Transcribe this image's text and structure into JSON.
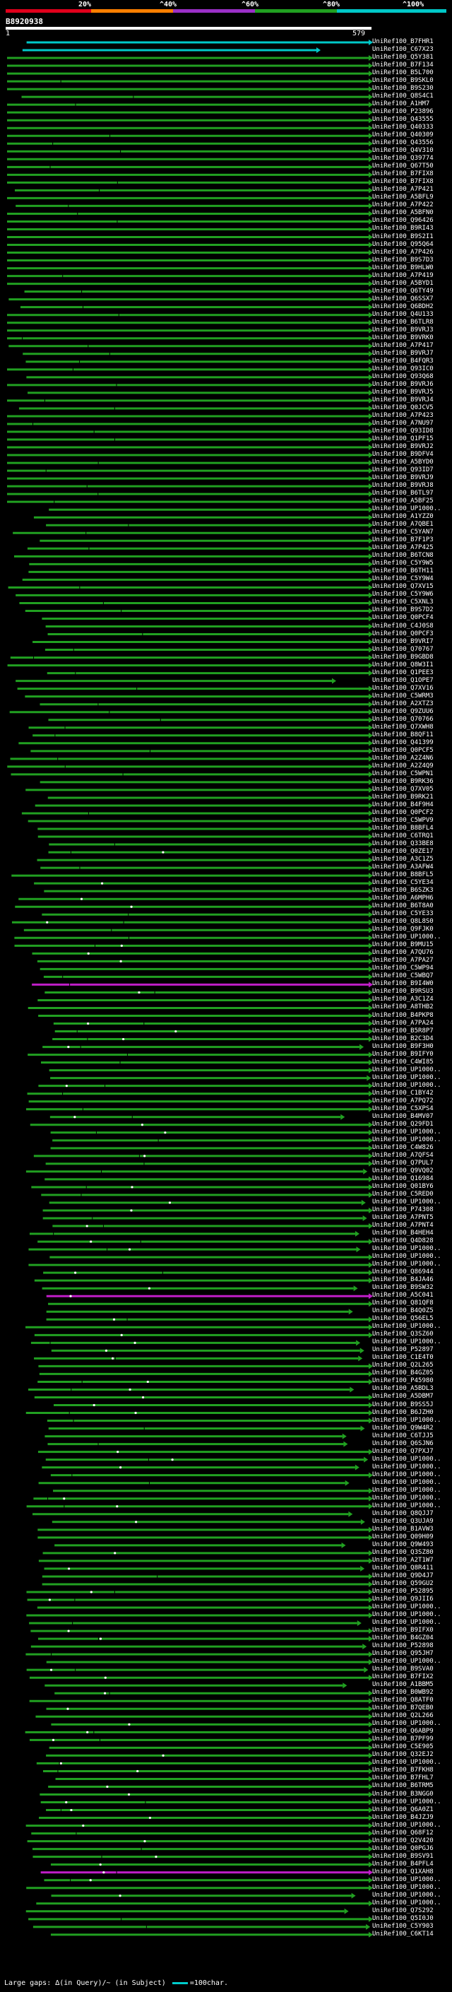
{
  "scale": {
    "ticks": [
      "20%",
      "^40%",
      "^60%",
      "^80%",
      "^100%"
    ],
    "colors": [
      "#e0001b",
      "#ff7f00",
      "#9b30c8",
      "#21a021",
      "#00c8c8"
    ]
  },
  "query": {
    "id": "B8920938",
    "start": "1",
    "end": "579"
  },
  "hits": [
    "UniRef100_B7FHR1",
    "UniRef100_C67X23",
    "UniRef100_Q5Y381",
    "UniRef100_B7F134",
    "UniRef100_B5L700",
    "UniRef100_B9SKL0",
    "UniRef100_B9S230",
    "UniRef100_Q8S4C1",
    "UniRef100_A1HM7",
    "UniRef100_P23896",
    "UniRef100_Q43555",
    "UniRef100_Q40333",
    "UniRef100_Q40309",
    "UniRef100_Q43556",
    "UniRef100_Q4V310",
    "UniRef100_Q39774",
    "UniRef100_Q67T50",
    "UniRef100_B7FIX8",
    "UniRef100_B7FIX8",
    "UniRef100_A7P421",
    "UniRef100_A5BFL9",
    "UniRef100_A7P422",
    "UniRef100_A5BFN0",
    "UniRef100_Q96426",
    "UniRef100_B9RI43",
    "UniRef100_B9S2I1",
    "UniRef100_Q95Q64",
    "UniRef100_A7P426",
    "UniRef100_B9S7D3",
    "UniRef100_B9HLW0",
    "UniRef100_A7P419",
    "UniRef100_A5BYD1",
    "UniRef100_Q6TY49",
    "UniRef100_Q6SSX7",
    "UniRef100_Q6BDH2",
    "UniRef100_Q4U133",
    "UniRef100_B6TLR8",
    "UniRef100_B9VRJ3",
    "UniRef100_B9VRK0",
    "UniRef100_A7P417",
    "UniRef100_B9VRJ7",
    "UniRef100_B4FQR3",
    "UniRef100_Q93IC0",
    "UniRef100_Q93Q68",
    "UniRef100_B9VRJ6",
    "UniRef100_B9VRJ5",
    "UniRef100_B9VRJ4",
    "UniRef100_Q0JCV5",
    "UniRef100_A7P423",
    "UniRef100_A7NU97",
    "UniRef100_Q93ID8",
    "UniRef100_Q1PF15",
    "UniRef100_B9VRJ2",
    "UniRef100_B9DFV4",
    "UniRef100_A5BYD0",
    "UniRef100_Q93ID7",
    "UniRef100_B9VRJ9",
    "UniRef100_B9VRJ8",
    "UniRef100_B6TL97",
    "UniRef100_A5BF25",
    "UniRef100_UP1000..",
    "UniRef100_A1YZZ0",
    "UniRef100_A7QBE1",
    "UniRef100_C5YAN7",
    "UniRef100_B7F1P3",
    "UniRef100_A7P425",
    "UniRef100_B6TCN8",
    "UniRef100_C5Y9W5",
    "UniRef100_B6TH11",
    "UniRef100_C5Y9W4",
    "UniRef100_Q7XV15",
    "UniRef100_C5Y9W6",
    "UniRef100_C5XNL3",
    "UniRef100_B9S7D2",
    "UniRef100_Q0PCF4",
    "UniRef100_C4J0S8",
    "UniRef100_Q0PCF3",
    "UniRef100_B9VRI7",
    "UniRef100_Q70767",
    "UniRef100_B9GBD8",
    "UniRef100_Q8W3I1",
    "UniRef100_Q1PEE3",
    "UniRef100_Q1OPE7",
    "UniRef100_Q7XV16",
    "UniRef100_C5WRM3",
    "UniRef100_A2XTZ3",
    "UniRef100_Q9ZUU6",
    "UniRef100_Q70766",
    "UniRef100_Q7XWH8",
    "UniRef100_B8QF11",
    "UniRef100_Q41399",
    "UniRef100_Q0PCF5",
    "UniRef100_A2Z4N6",
    "UniRef100_A2Z4Q9",
    "UniRef100_C5WPN1",
    "UniRef100_B9RK36",
    "UniRef100_Q7XV05",
    "UniRef100_B9RK21",
    "UniRef100_B4F9H4",
    "UniRef100_Q0PCF2",
    "UniRef100_C5WPV9",
    "UniRef100_B8BFL4",
    "UniRef100_C6TRQ1",
    "UniRef100_Q33BE8",
    "UniRef100_Q0ZE17",
    "UniRef100_A3C1Z5",
    "UniRef100_A3AFW4",
    "UniRef100_B8BFL5",
    "UniRef100_C5YE34",
    "UniRef100_B6SZK3",
    "UniRef100_A6MPH6",
    "UniRef100_B6T8A0",
    "UniRef100_C5YE33",
    "UniRef100_Q8L8S0",
    "UniRef100_Q9FJK0",
    "UniRef100_UP1000..",
    "UniRef100_B9MU15",
    "UniRef100_A7QU76",
    "UniRef100_A7PA27",
    "UniRef100_C5WP94",
    "UniRef100_C5WBQ7",
    "UniRef100_B9I4W0",
    "UniRef100_B9RSU3",
    "UniRef100_A3C1Z4",
    "UniRef100_A8THB2",
    "UniRef100_B4PKP8",
    "UniRef100_A7PA24",
    "UniRef100_B5R8P7",
    "UniRef100_B2C3D4",
    "UniRef100_B9F3H0",
    "UniRef100_B9IFY0",
    "UniRef100_C4WI85",
    "UniRef100_UP1000..",
    "UniRef100_UP1000..",
    "UniRef100_UP1000..",
    "UniRef100_C1BY42",
    "UniRef100_A7PQ72",
    "UniRef100_C5XPS4",
    "UniRef100_B4MV07",
    "UniRef100_Q29FD1",
    "UniRef100_UP1000..",
    "UniRef100_UP1000..",
    "UniRef100_C4W826",
    "UniRef100_A7QFS4",
    "UniRef100_Q7PUL7",
    "UniRef100_Q9VQ02",
    "UniRef100_Q16984",
    "UniRef100_Q01BY6",
    "UniRef100_C5RED0",
    "UniRef100_UP1000..",
    "UniRef100_P74308",
    "UniRef100_A7PNT5",
    "UniRef100_A7PNT4",
    "UniRef100_B4HEH4",
    "UniRef100_Q4D828",
    "UniRef100_UP1000..",
    "UniRef100_UP1000..",
    "UniRef100_UP1000..",
    "UniRef100_Q86944",
    "UniRef100_B4JA46",
    "UniRef100_B9SW32",
    "UniRef100_A5C041",
    "UniRef100_Q81QF8",
    "UniRef100_B4Q0Z5",
    "UniRef100_Q56EL5",
    "UniRef100_UP1000..",
    "UniRef100_Q3SZ60",
    "UniRef100_UP1000..",
    "UniRef100_P52897",
    "UniRef100_C1E4T0",
    "UniRef100_Q2L265",
    "UniRef100_B4GZ05",
    "UniRef100_P45980",
    "UniRef100_A5BDL3",
    "UniRef100_A5DBM7",
    "UniRef100_B9SS5J",
    "UniRef100_B6JZH0",
    "UniRef100_UP1000..",
    "UniRef100_Q9W4R2",
    "UniRef100_C6TJJ5",
    "UniRef100_Q6SJN6",
    "UniRef100_Q7PXJ7",
    "UniRef100_UP1000..",
    "UniRef100_UP1000..",
    "UniRef100_UP1000..",
    "UniRef100_UP1000..",
    "UniRef100_UP1000..",
    "UniRef100_UP1000..",
    "UniRef100_UP1000..",
    "UniRef100_Q8QJJ7",
    "UniRef100_Q3UJA9",
    "UniRef100_B1AVW3",
    "UniRef100_Q09H09",
    "UniRef100_Q9W493",
    "UniRef100_Q3SZ80",
    "UniRef100_A2T1W7",
    "UniRef100_Q8R411",
    "UniRef100_Q9D4J7",
    "UniRef100_Q59GU2",
    "UniRef100_P52895",
    "UniRef100_Q9JII6",
    "UniRef100_UP1000..",
    "UniRef100_UP1000..",
    "UniRef100_UP1000..",
    "UniRef100_B9IFX0",
    "UniRef100_B4GZ04",
    "UniRef100_P52898",
    "UniRef100_Q95JH7",
    "UniRef100_UP1000..",
    "UniRef100_B9SVA0",
    "UniRef100_B7FIX2",
    "UniRef100_A1BBM5",
    "UniRef100_B0WB92",
    "UniRef100_Q8ATF0",
    "UniRef100_B7QEB0",
    "UniRef100_Q2L266",
    "UniRef100_UP1000..",
    "UniRef100_Q6ABP9",
    "UniRef100_B7PF99",
    "UniRef100_C5E905",
    "UniRef100_Q32EJ2",
    "UniRef100_UP1000..",
    "UniRef100_B7FKH8",
    "UniRef100_B7FHL7",
    "UniRef100_B6TRM5",
    "UniRef100_B3NGG0",
    "UniRef100_UP1000..",
    "UniRef100_Q6A0Z1",
    "UniRef100_B4JZJ9",
    "UniRef100_UP1000..",
    "UniRef100_Q68F12",
    "UniRef100_Q2V420",
    "UniRef100_Q0PGJ6",
    "UniRef100_B9SV91",
    "UniRef100_B4PFL4",
    "UniRef100_Q1XAH8",
    "UniRef100_UP1000..",
    "UniRef100_UP1000..",
    "UniRef100_UP1000..",
    "UniRef100_UP1000..",
    "UniRef100_Q7S292",
    "UniRef100_Q5I0J0",
    "UniRef100_C5Y903",
    "UniRef100_C6KT14"
  ],
  "footer": {
    "text": "Large gaps: ∆(in Query)/~ (in Subject)",
    "scale_text": "=100char."
  }
}
